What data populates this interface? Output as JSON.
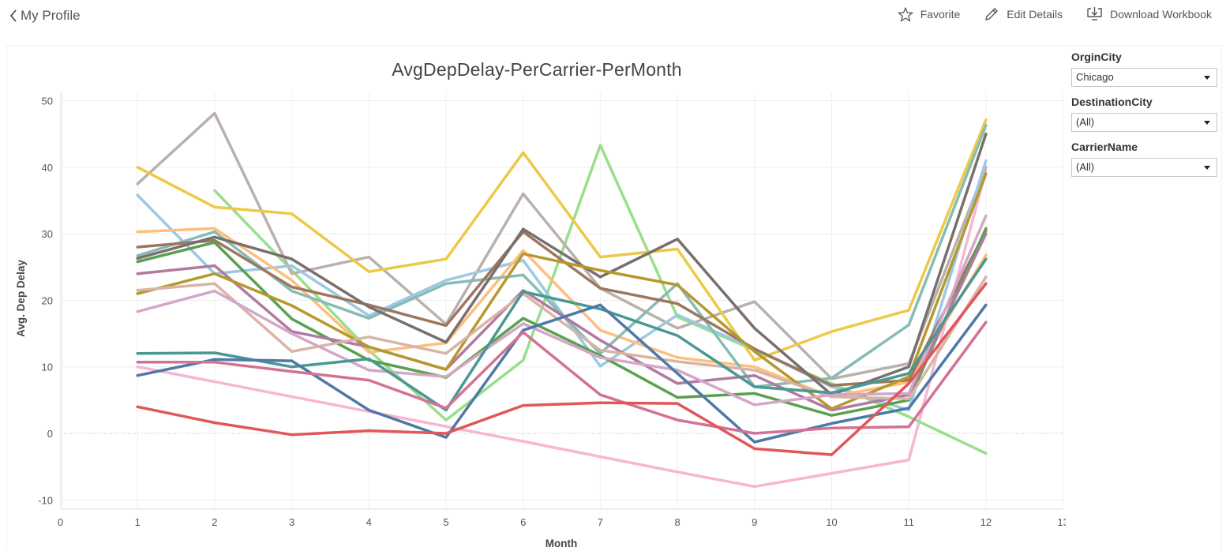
{
  "nav": {
    "back_label": "My Profile"
  },
  "toolbar": {
    "favorite_label": "Favorite",
    "edit_label": "Edit Details",
    "download_label": "Download Workbook"
  },
  "filters": {
    "origin": {
      "label": "OrginCity",
      "value": "Chicago"
    },
    "destination": {
      "label": "DestinationCity",
      "value": "(All)"
    },
    "carrier": {
      "label": "CarrierName",
      "value": "(All)"
    }
  },
  "chart_data": {
    "type": "line",
    "title": "AvgDepDelay-PerCarrier-PerMonth",
    "xlabel": "Month",
    "ylabel": "Avg. Dep Delay",
    "xlim": [
      0,
      13
    ],
    "ylim": [
      -11,
      52
    ],
    "xticks": [
      0,
      1,
      2,
      3,
      4,
      5,
      6,
      7,
      8,
      9,
      10,
      11,
      12,
      13
    ],
    "yticks": [
      -10,
      0,
      10,
      20,
      30,
      40,
      50
    ],
    "grid": true,
    "legend": "none",
    "series": [
      {
        "color": "#f7b6d2",
        "x": [
          1,
          6,
          7,
          8,
          9,
          10,
          11,
          12
        ],
        "y": [
          10.0,
          -1.2,
          -3.5,
          -5.8,
          -8.0,
          -6.0,
          -4.0,
          39.5
        ]
      },
      {
        "color": "#98df8a",
        "x": [
          2,
          4,
          5,
          6,
          7,
          8,
          9,
          10,
          11,
          12
        ],
        "y": [
          36.5,
          12.5,
          2.0,
          11.0,
          43.3,
          17.5,
          12.5,
          7.5,
          2.5,
          -3.0
        ]
      },
      {
        "color": "#bab0ac",
        "x": [
          1,
          2,
          3,
          4,
          5,
          6,
          7,
          8,
          9,
          10,
          11,
          12
        ],
        "y": [
          37.5,
          48.1,
          24.0,
          26.5,
          16.4,
          36.0,
          21.8,
          15.8,
          19.8,
          8.2,
          10.5,
          40.0
        ]
      },
      {
        "color": "#edc948",
        "x": [
          1,
          2,
          3,
          4,
          5,
          6,
          7,
          8,
          9,
          10,
          11,
          12
        ],
        "y": [
          40.0,
          34.0,
          33.0,
          24.3,
          26.2,
          42.2,
          26.5,
          27.7,
          11.0,
          15.3,
          18.5,
          47.1
        ]
      },
      {
        "color": "#9dc8e3",
        "x": [
          1,
          2,
          3,
          4,
          5,
          6,
          7,
          8,
          9,
          10,
          11,
          12
        ],
        "y": [
          35.8,
          24.0,
          25.2,
          17.7,
          23.0,
          26.0,
          10.1,
          17.8,
          12.7,
          7.0,
          3.5,
          41.0
        ]
      },
      {
        "color": "#ffbe7d",
        "x": [
          1,
          2,
          3,
          4,
          5,
          6,
          7,
          8,
          9,
          10,
          11,
          12
        ],
        "y": [
          30.3,
          30.8,
          23.0,
          12.2,
          13.6,
          27.5,
          15.5,
          11.4,
          10.0,
          5.5,
          7.7,
          26.8
        ]
      },
      {
        "color": "#86bcb6",
        "x": [
          1,
          2,
          3,
          4,
          5,
          6,
          7,
          8,
          9,
          10,
          11,
          12
        ],
        "y": [
          26.7,
          30.3,
          21.4,
          17.3,
          22.5,
          23.8,
          12.0,
          22.5,
          7.0,
          8.3,
          16.3,
          46.3
        ]
      },
      {
        "color": "#9d7660",
        "x": [
          1,
          2,
          3,
          4,
          5,
          6,
          7,
          8,
          9,
          10,
          11,
          12
        ],
        "y": [
          28.0,
          29.0,
          22.0,
          19.3,
          16.2,
          30.3,
          21.8,
          19.5,
          12.7,
          7.2,
          8.0,
          30.5
        ]
      },
      {
        "color": "#79706e",
        "x": [
          1,
          2,
          3,
          4,
          5,
          6,
          7,
          8,
          9,
          10,
          11,
          12
        ],
        "y": [
          26.3,
          29.5,
          26.2,
          19.0,
          13.7,
          30.7,
          23.5,
          29.2,
          15.8,
          5.8,
          10.0,
          45.0
        ]
      },
      {
        "color": "#59a14f",
        "x": [
          1,
          2,
          3,
          4,
          5,
          6,
          7,
          8,
          9,
          10,
          11,
          12
        ],
        "y": [
          25.8,
          28.7,
          17.2,
          11.0,
          8.4,
          17.3,
          11.7,
          5.4,
          6.0,
          2.7,
          5.0,
          30.8
        ]
      },
      {
        "color": "#b07aa1",
        "x": [
          1,
          2,
          3,
          4,
          5,
          6,
          7,
          8,
          9,
          10,
          11,
          12
        ],
        "y": [
          24.0,
          25.2,
          15.3,
          13.0,
          9.6,
          21.5,
          14.0,
          7.5,
          8.7,
          3.5,
          5.8,
          30.0
        ]
      },
      {
        "color": "#b6992d",
        "x": [
          1,
          2,
          3,
          4,
          5,
          6,
          7,
          8,
          9,
          10,
          11,
          12
        ],
        "y": [
          21.0,
          24.0,
          19.2,
          13.0,
          9.6,
          27.0,
          24.5,
          22.3,
          12.3,
          3.7,
          8.5,
          39.0
        ]
      },
      {
        "color": "#d7b5a6",
        "x": [
          1,
          2,
          3,
          4,
          5,
          6,
          7,
          8,
          9,
          10,
          11,
          12
        ],
        "y": [
          21.5,
          22.5,
          12.3,
          14.5,
          12.0,
          21.0,
          12.5,
          10.8,
          9.5,
          5.5,
          5.2,
          23.5
        ]
      },
      {
        "color": "#d4a6c8",
        "x": [
          1,
          2,
          3,
          4,
          5,
          6,
          7,
          8,
          9,
          10,
          11,
          12
        ],
        "y": [
          18.3,
          21.4,
          15.0,
          9.5,
          8.5,
          16.5,
          11.4,
          9.5,
          4.3,
          5.8,
          6.0,
          32.7
        ]
      },
      {
        "color": "#499894",
        "x": [
          1,
          2,
          3,
          4,
          5,
          6,
          7,
          8,
          9,
          10,
          11,
          12
        ],
        "y": [
          12.0,
          12.1,
          10.0,
          11.2,
          3.5,
          21.3,
          18.7,
          14.7,
          7.0,
          6.1,
          9.0,
          26.2
        ]
      },
      {
        "color": "#4e79a7",
        "x": [
          1,
          2,
          3,
          4,
          5,
          6,
          7,
          8,
          9,
          10,
          11,
          12
        ],
        "y": [
          8.7,
          11.1,
          10.9,
          3.5,
          -0.6,
          15.5,
          19.3,
          9.0,
          -1.3,
          1.5,
          3.8,
          19.3
        ]
      },
      {
        "color": "#d37295",
        "x": [
          1,
          2,
          3,
          4,
          5,
          6,
          7,
          8,
          9,
          10,
          11,
          12
        ],
        "y": [
          10.7,
          10.7,
          9.3,
          8.0,
          3.8,
          15.2,
          5.8,
          2.0,
          0.0,
          0.8,
          1.0,
          16.7
        ]
      },
      {
        "color": "#e15759",
        "x": [
          1,
          2,
          3,
          4,
          5,
          6,
          7,
          8,
          9,
          10,
          11,
          12
        ],
        "y": [
          4.0,
          1.6,
          -0.2,
          0.4,
          0.0,
          4.2,
          4.6,
          4.5,
          -2.3,
          -3.2,
          7.5,
          22.5
        ]
      }
    ]
  }
}
